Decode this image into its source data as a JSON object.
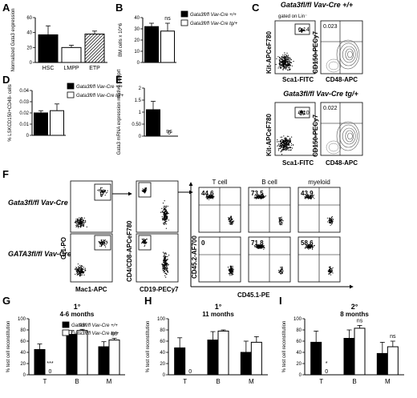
{
  "panels": [
    "A",
    "B",
    "C",
    "D",
    "E",
    "F",
    "G",
    "H",
    "I"
  ],
  "panel_C": {
    "title_top": "Gata3fl/fl Vav-Cre +/+",
    "title_bottom": "Gata3fl/fl Vav-Cre tg/+",
    "gated_label": "gated on Lin⁻",
    "kit_axis": "Kit-APCeF780",
    "sca_axis": "Sca1-FITC",
    "cd150_axis": "CD150-PECy7",
    "cd48_axis": "CD48-APC",
    "top_lsk": "0.14",
    "top_hsc": "0.023",
    "bottom_lsk": "0.10",
    "bottom_hsc": "0.022"
  },
  "panel_F": {
    "rows": [
      "Gata3fl/fl Vav-Cre +/+",
      "GATA3fl/fl Vav-Cre tg/+"
    ],
    "gr1_axis": "Gr1-PO",
    "mac1_axis": "Mac1-APC",
    "cd4_axis": "CD4/CD8-APCeF780",
    "cd19_axis": "CD19-PECy7",
    "cd452_axis": "CD45.2-AF700",
    "cd451_axis": "CD45.1-PE",
    "gate_titles": [
      "T cell",
      "B cell",
      "myeloid"
    ],
    "top_values": [
      "44.6",
      "73.5",
      "43.9"
    ],
    "bottom_values": [
      "0",
      "71.8",
      "58.6"
    ]
  },
  "legend": {
    "wt": "Gata3fl/fl Vav-Cre +/+",
    "tg": "Gata3fl/fl Vav-Cre tg/+",
    "wt_color": "#000000",
    "tg_color": "#ffffff"
  },
  "chart_data": [
    {
      "panel": "A",
      "type": "bar",
      "categories": [
        "HSC",
        "LMPP",
        "ETP"
      ],
      "values": [
        37,
        20,
        38
      ],
      "errors": [
        12,
        3,
        4
      ],
      "fills": [
        "black",
        "white",
        "hatched"
      ],
      "ylabel": "Normalized Gata3 expression",
      "ylim": [
        0,
        60
      ],
      "yticks": [
        0,
        20,
        40,
        60
      ]
    },
    {
      "panel": "B",
      "type": "bar",
      "categories": [
        "+/+",
        "tg/+"
      ],
      "values": [
        32,
        28
      ],
      "errors": [
        3,
        7
      ],
      "annotations": [
        "",
        "ns"
      ],
      "ylabel": "BM cells x 10^6",
      "ylim": [
        0,
        40
      ],
      "yticks": [
        0,
        10,
        20,
        30,
        40
      ]
    },
    {
      "panel": "D",
      "type": "bar",
      "categories": [
        "+/+",
        "tg/+"
      ],
      "values": [
        0.02,
        0.022
      ],
      "errors": [
        0.002,
        0.006
      ],
      "ylabel": "% LSKCD150+CD48- cells",
      "ylim": [
        0,
        0.04
      ],
      "yticks": [
        0,
        0.01,
        0.02,
        0.03,
        0.04
      ]
    },
    {
      "panel": "E",
      "type": "bar",
      "categories": [
        "+/+",
        "tg/+"
      ],
      "values": [
        1.1,
        0
      ],
      "errors": [
        0.35,
        0
      ],
      "annotations": [
        "",
        "ns"
      ],
      "bar_labels": [
        "",
        "0"
      ],
      "ylabel": "Gata3 mRNA expression relative to Hprt",
      "ylim": [
        0,
        2
      ],
      "yticks": [
        0,
        0.5,
        1,
        1.5,
        2
      ]
    },
    {
      "panel": "G",
      "type": "bar",
      "title": "1°",
      "subtitle": "4-6 months",
      "categories": [
        "T",
        "B",
        "M"
      ],
      "series": [
        {
          "name": "Gata3fl/fl Vav-Cre +/+",
          "values": [
            45,
            72,
            50
          ],
          "errors": [
            10,
            7,
            9
          ]
        },
        {
          "name": "Gata3fl/fl Vav-Cre tg/+",
          "values": [
            0,
            79,
            62
          ],
          "errors": [
            0,
            2,
            3
          ]
        }
      ],
      "annotations": [
        "***",
        "ns",
        "ns"
      ],
      "zero_labels": [
        "0",
        "",
        ""
      ],
      "ylabel": "% test cell reconstitution",
      "ylim": [
        0,
        100
      ],
      "yticks": [
        0,
        20,
        40,
        60,
        80,
        100
      ]
    },
    {
      "panel": "H",
      "type": "bar",
      "title": "1°",
      "subtitle": "11 months",
      "categories": [
        "T",
        "B",
        "M"
      ],
      "series": [
        {
          "name": "Gata3fl/fl Vav-Cre +/+",
          "values": [
            48,
            62,
            40
          ],
          "errors": [
            18,
            15,
            20
          ]
        },
        {
          "name": "Gata3fl/fl Vav-Cre tg/+",
          "values": [
            0,
            78,
            58
          ],
          "errors": [
            0,
            2,
            10
          ]
        }
      ],
      "annotations": [
        "",
        "",
        ""
      ],
      "zero_labels": [
        "0",
        "",
        ""
      ],
      "ylabel": "% test cell reconstitution",
      "ylim": [
        0,
        100
      ],
      "yticks": [
        0,
        20,
        40,
        60,
        80,
        100
      ]
    },
    {
      "panel": "I",
      "type": "bar",
      "title": "2°",
      "subtitle": "8 months",
      "categories": [
        "T",
        "B",
        "M"
      ],
      "series": [
        {
          "name": "Gata3fl/fl Vav-Cre +/+",
          "values": [
            58,
            65,
            38
          ],
          "errors": [
            20,
            15,
            20
          ]
        },
        {
          "name": "Gata3fl/fl Vav-Cre tg/+",
          "values": [
            0,
            83,
            50
          ],
          "errors": [
            0,
            5,
            10
          ]
        }
      ],
      "annotations": [
        "*",
        "ns",
        "ns"
      ],
      "zero_labels": [
        "0",
        "",
        ""
      ],
      "ylabel": "% test cell reconstitution",
      "ylim": [
        0,
        100
      ],
      "yticks": [
        0,
        20,
        40,
        60,
        80,
        100
      ]
    }
  ]
}
